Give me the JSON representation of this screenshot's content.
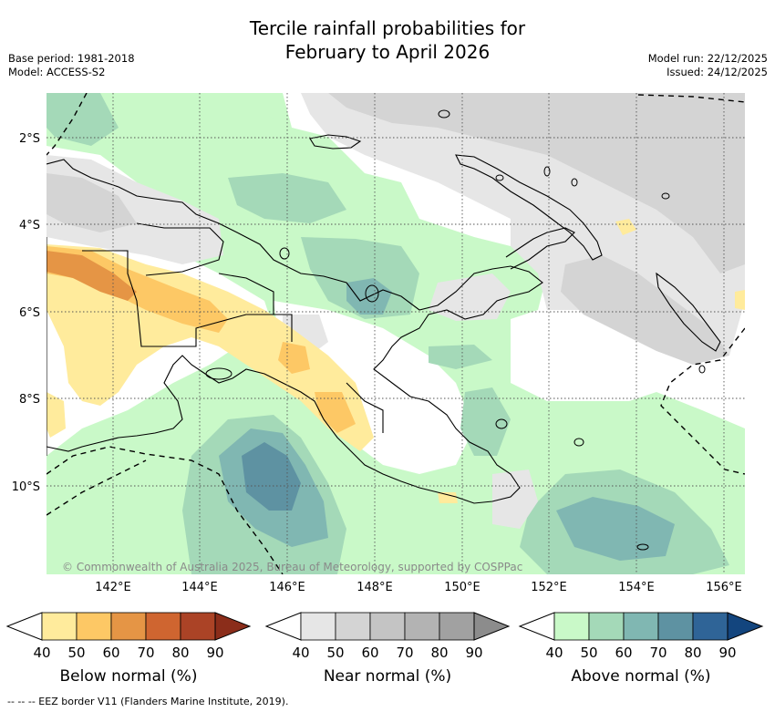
{
  "title_line1": "Tercile rainfall probabilities for",
  "title_line2": "February to April 2026",
  "base_period": "Base period: 1981-2018",
  "model": "Model: ACCESS-S2",
  "model_run": "Model run: 22/12/2025",
  "issued": "Issued: 24/12/2025",
  "lat_labels": [
    "2°S",
    "4°S",
    "6°S",
    "8°S",
    "10°S"
  ],
  "lon_labels": [
    "142°E",
    "144°E",
    "146°E",
    "148°E",
    "150°E",
    "152°E",
    "154°E",
    "156°E"
  ],
  "copyright": "© Commonwealth of Australia 2025, Bureau of Meteorology, supported by COSPPac",
  "footer": "-- -- -- EEZ border V11 (Flanders Marine Institute, 2019).",
  "colorbars": [
    {
      "title": "Below normal (%)",
      "ticks": [
        "40",
        "50",
        "60",
        "70",
        "80",
        "90"
      ],
      "colors": [
        "#ffeb9c",
        "#fdc865",
        "#e59545",
        "#cf6530",
        "#ab4326",
        "#8b2d1a"
      ]
    },
    {
      "title": "Near normal (%)",
      "ticks": [
        "40",
        "50",
        "60",
        "70",
        "80",
        "90"
      ],
      "colors": [
        "#e6e6e6",
        "#d4d4d4",
        "#c4c4c4",
        "#b3b3b3",
        "#a1a1a1",
        "#8c8c8c"
      ]
    },
    {
      "title": "Above normal (%)",
      "ticks": [
        "40",
        "50",
        "60",
        "70",
        "80",
        "90"
      ],
      "colors": [
        "#c9f9c8",
        "#a4d9b8",
        "#80b7b2",
        "#5e92a2",
        "#2f6497",
        "#13457e"
      ]
    }
  ],
  "map_colors": {
    "land_outline": "#000000",
    "gridline": "#555555"
  }
}
